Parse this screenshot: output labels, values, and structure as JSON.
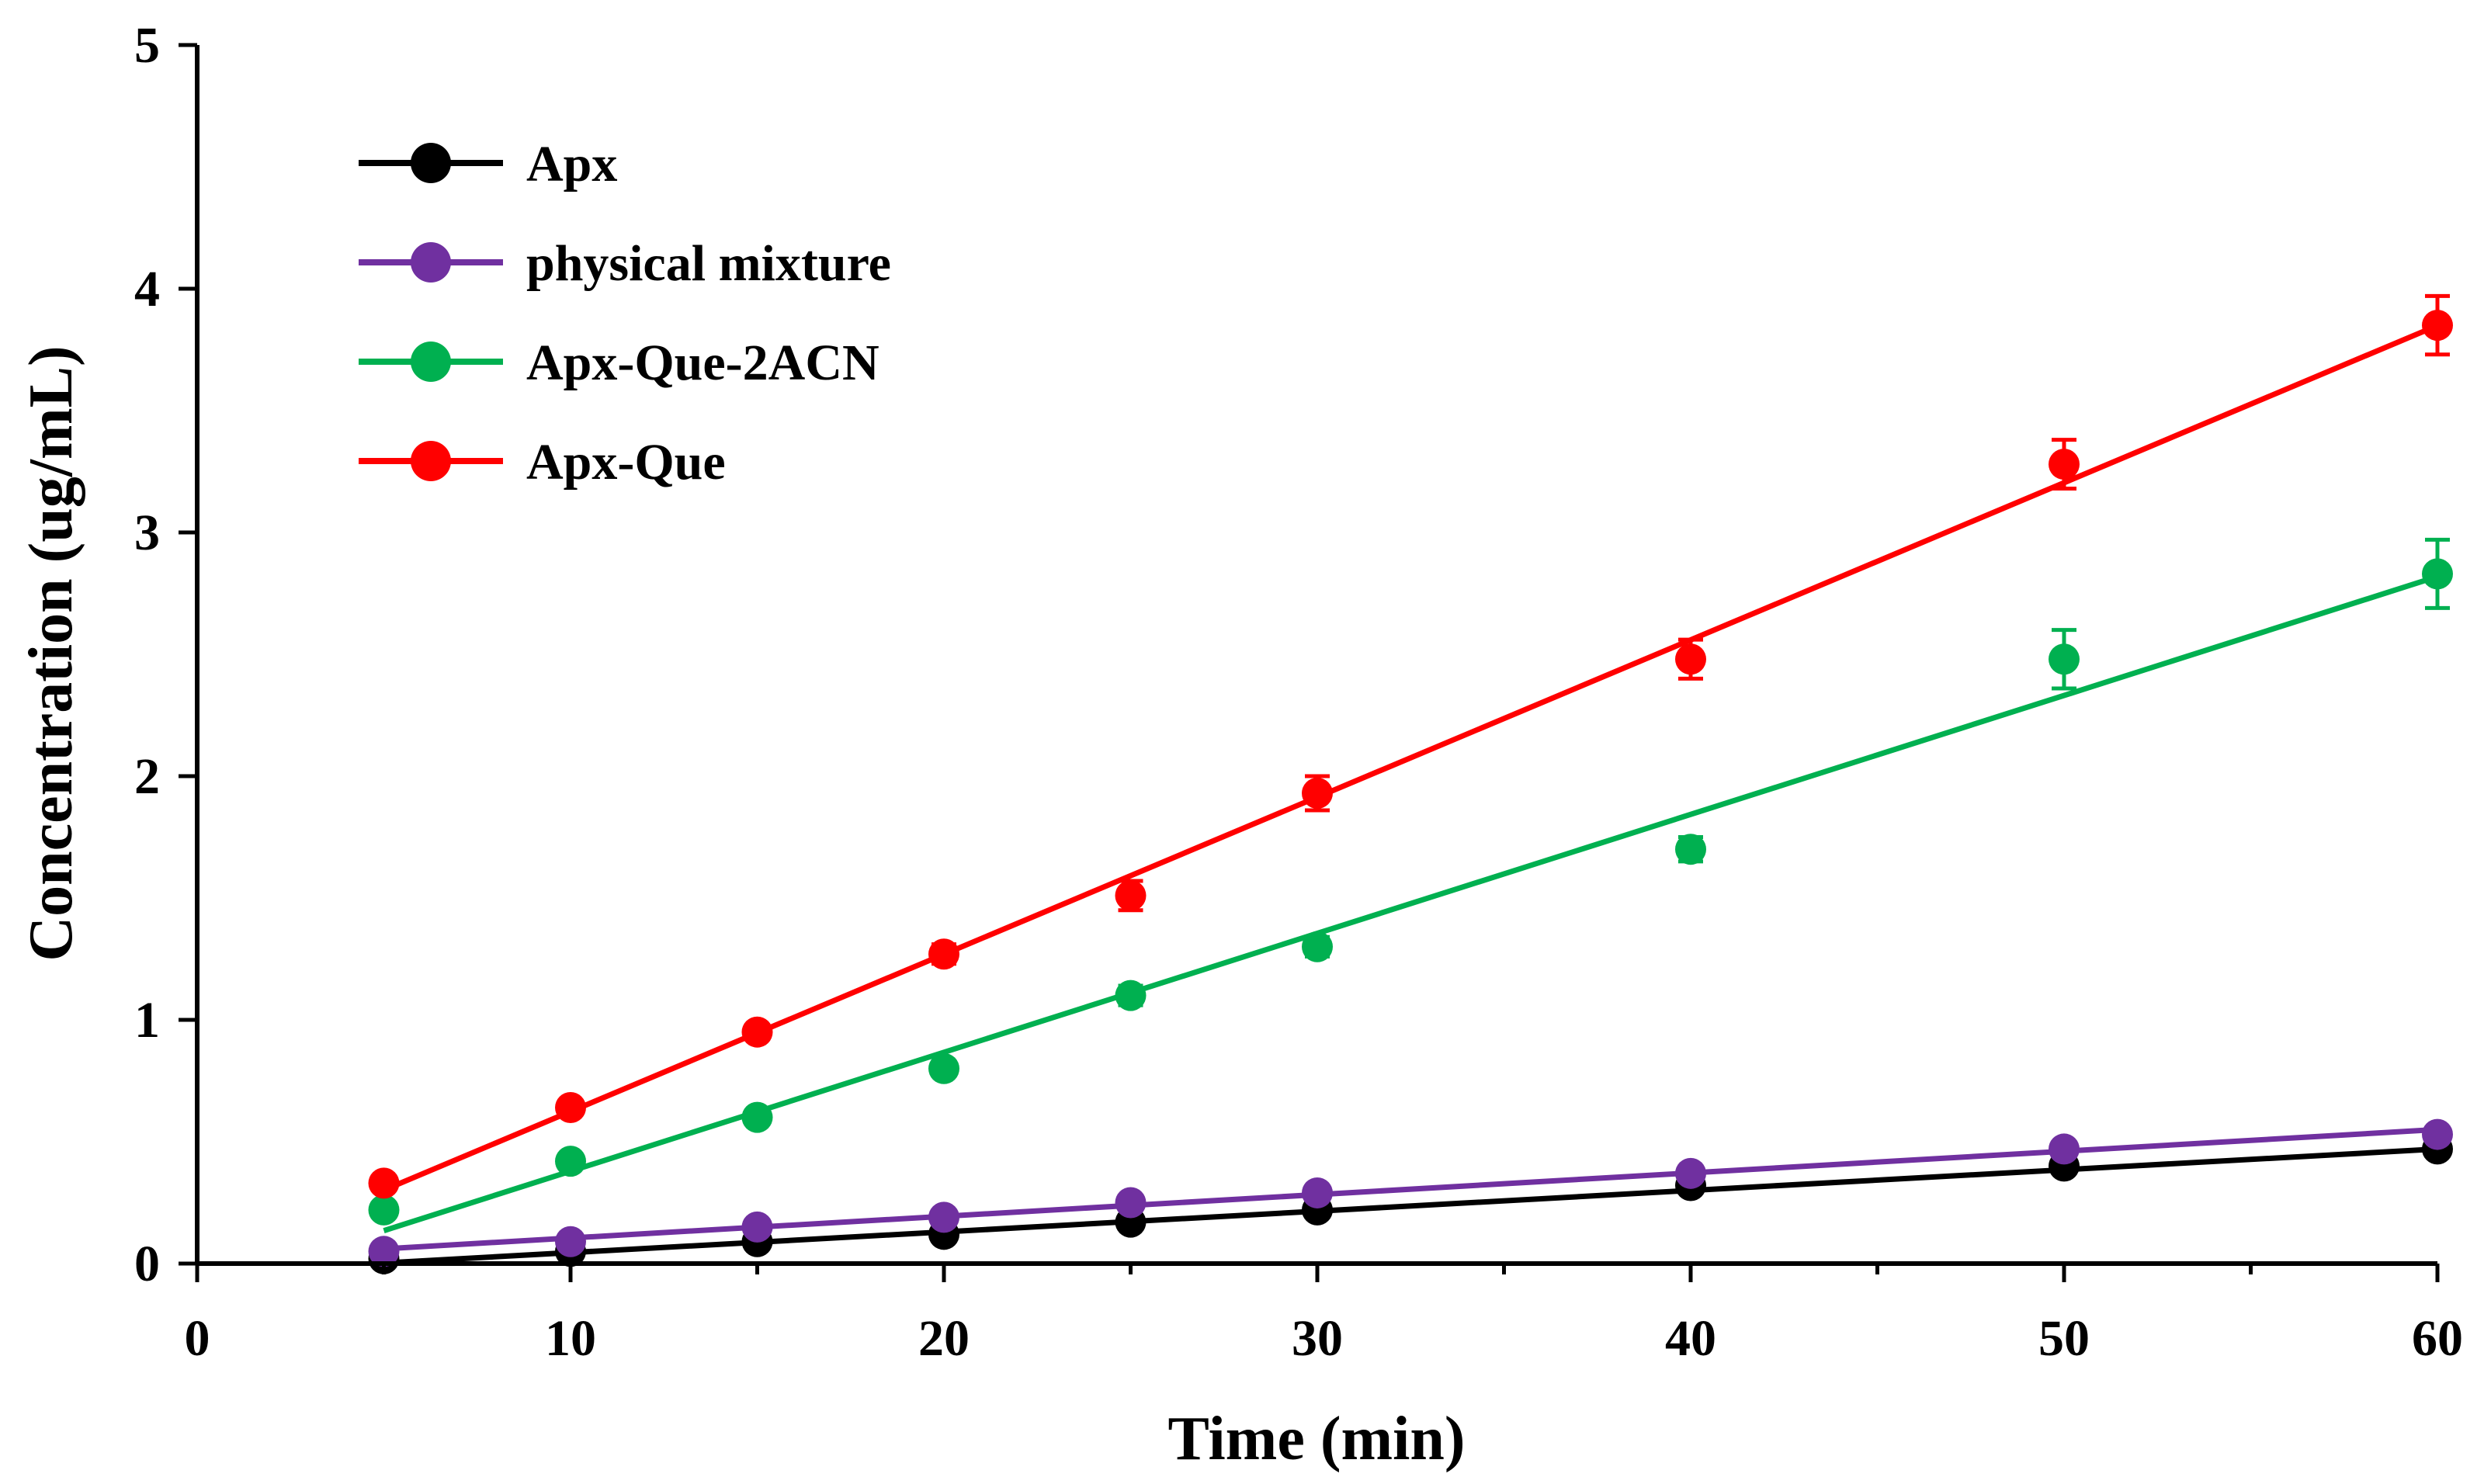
{
  "chart_data": {
    "type": "scatter",
    "title": "",
    "xlabel": "Time (min)",
    "ylabel": "Concentration (ug/mL)",
    "xlim": [
      0,
      60
    ],
    "ylim": [
      0,
      5
    ],
    "x_ticks": [
      0,
      10,
      20,
      30,
      40,
      50,
      60
    ],
    "x_minor_ticks": [
      5,
      15,
      25,
      35,
      45,
      55
    ],
    "y_ticks": [
      0,
      1,
      2,
      3,
      4,
      5
    ],
    "x_tick_labels": [
      "0",
      "10",
      "20",
      "30",
      "40",
      "50",
      "60"
    ],
    "y_tick_labels": [
      "0",
      "1",
      "2",
      "3",
      "4",
      "5"
    ],
    "grid": false,
    "legend_position": "top-left",
    "x": [
      5,
      10,
      15,
      20,
      25,
      30,
      40,
      50,
      60
    ],
    "series": [
      {
        "name": "Apx",
        "color": "#000000",
        "values": [
          0.02,
          0.05,
          0.09,
          0.12,
          0.17,
          0.22,
          0.32,
          0.4,
          0.47
        ],
        "errors": [
          0.02,
          0.02,
          0.02,
          0.02,
          0.02,
          0.02,
          0.02,
          0.02,
          0.02
        ],
        "fit": {
          "slope": 0.0085,
          "intercept": -0.04
        }
      },
      {
        "name": "physical mixture",
        "color": "#7030a0",
        "values": [
          0.05,
          0.09,
          0.15,
          0.19,
          0.25,
          0.29,
          0.37,
          0.47,
          0.53
        ],
        "errors": [
          0.02,
          0.02,
          0.02,
          0.02,
          0.02,
          0.02,
          0.02,
          0.02,
          0.02
        ],
        "fit": {
          "slope": 0.0089,
          "intercept": 0.016
        }
      },
      {
        "name": "Apx-Que-2ACN",
        "color": "#00b050",
        "values": [
          0.22,
          0.42,
          0.6,
          0.8,
          1.1,
          1.3,
          1.7,
          2.48,
          2.83
        ],
        "errors": [
          0.03,
          0.03,
          0.03,
          0.03,
          0.04,
          0.04,
          0.05,
          0.12,
          0.14
        ],
        "fit": {
          "slope": 0.0488,
          "intercept": -0.109
        }
      },
      {
        "name": "Apx-Que",
        "color": "#ff0000",
        "values": [
          0.33,
          0.64,
          0.95,
          1.27,
          1.51,
          1.93,
          2.48,
          3.28,
          3.85
        ],
        "errors": [
          0.03,
          0.03,
          0.03,
          0.04,
          0.06,
          0.07,
          0.08,
          0.1,
          0.12
        ],
        "fit": {
          "slope": 0.0645,
          "intercept": -0.021
        }
      }
    ]
  }
}
